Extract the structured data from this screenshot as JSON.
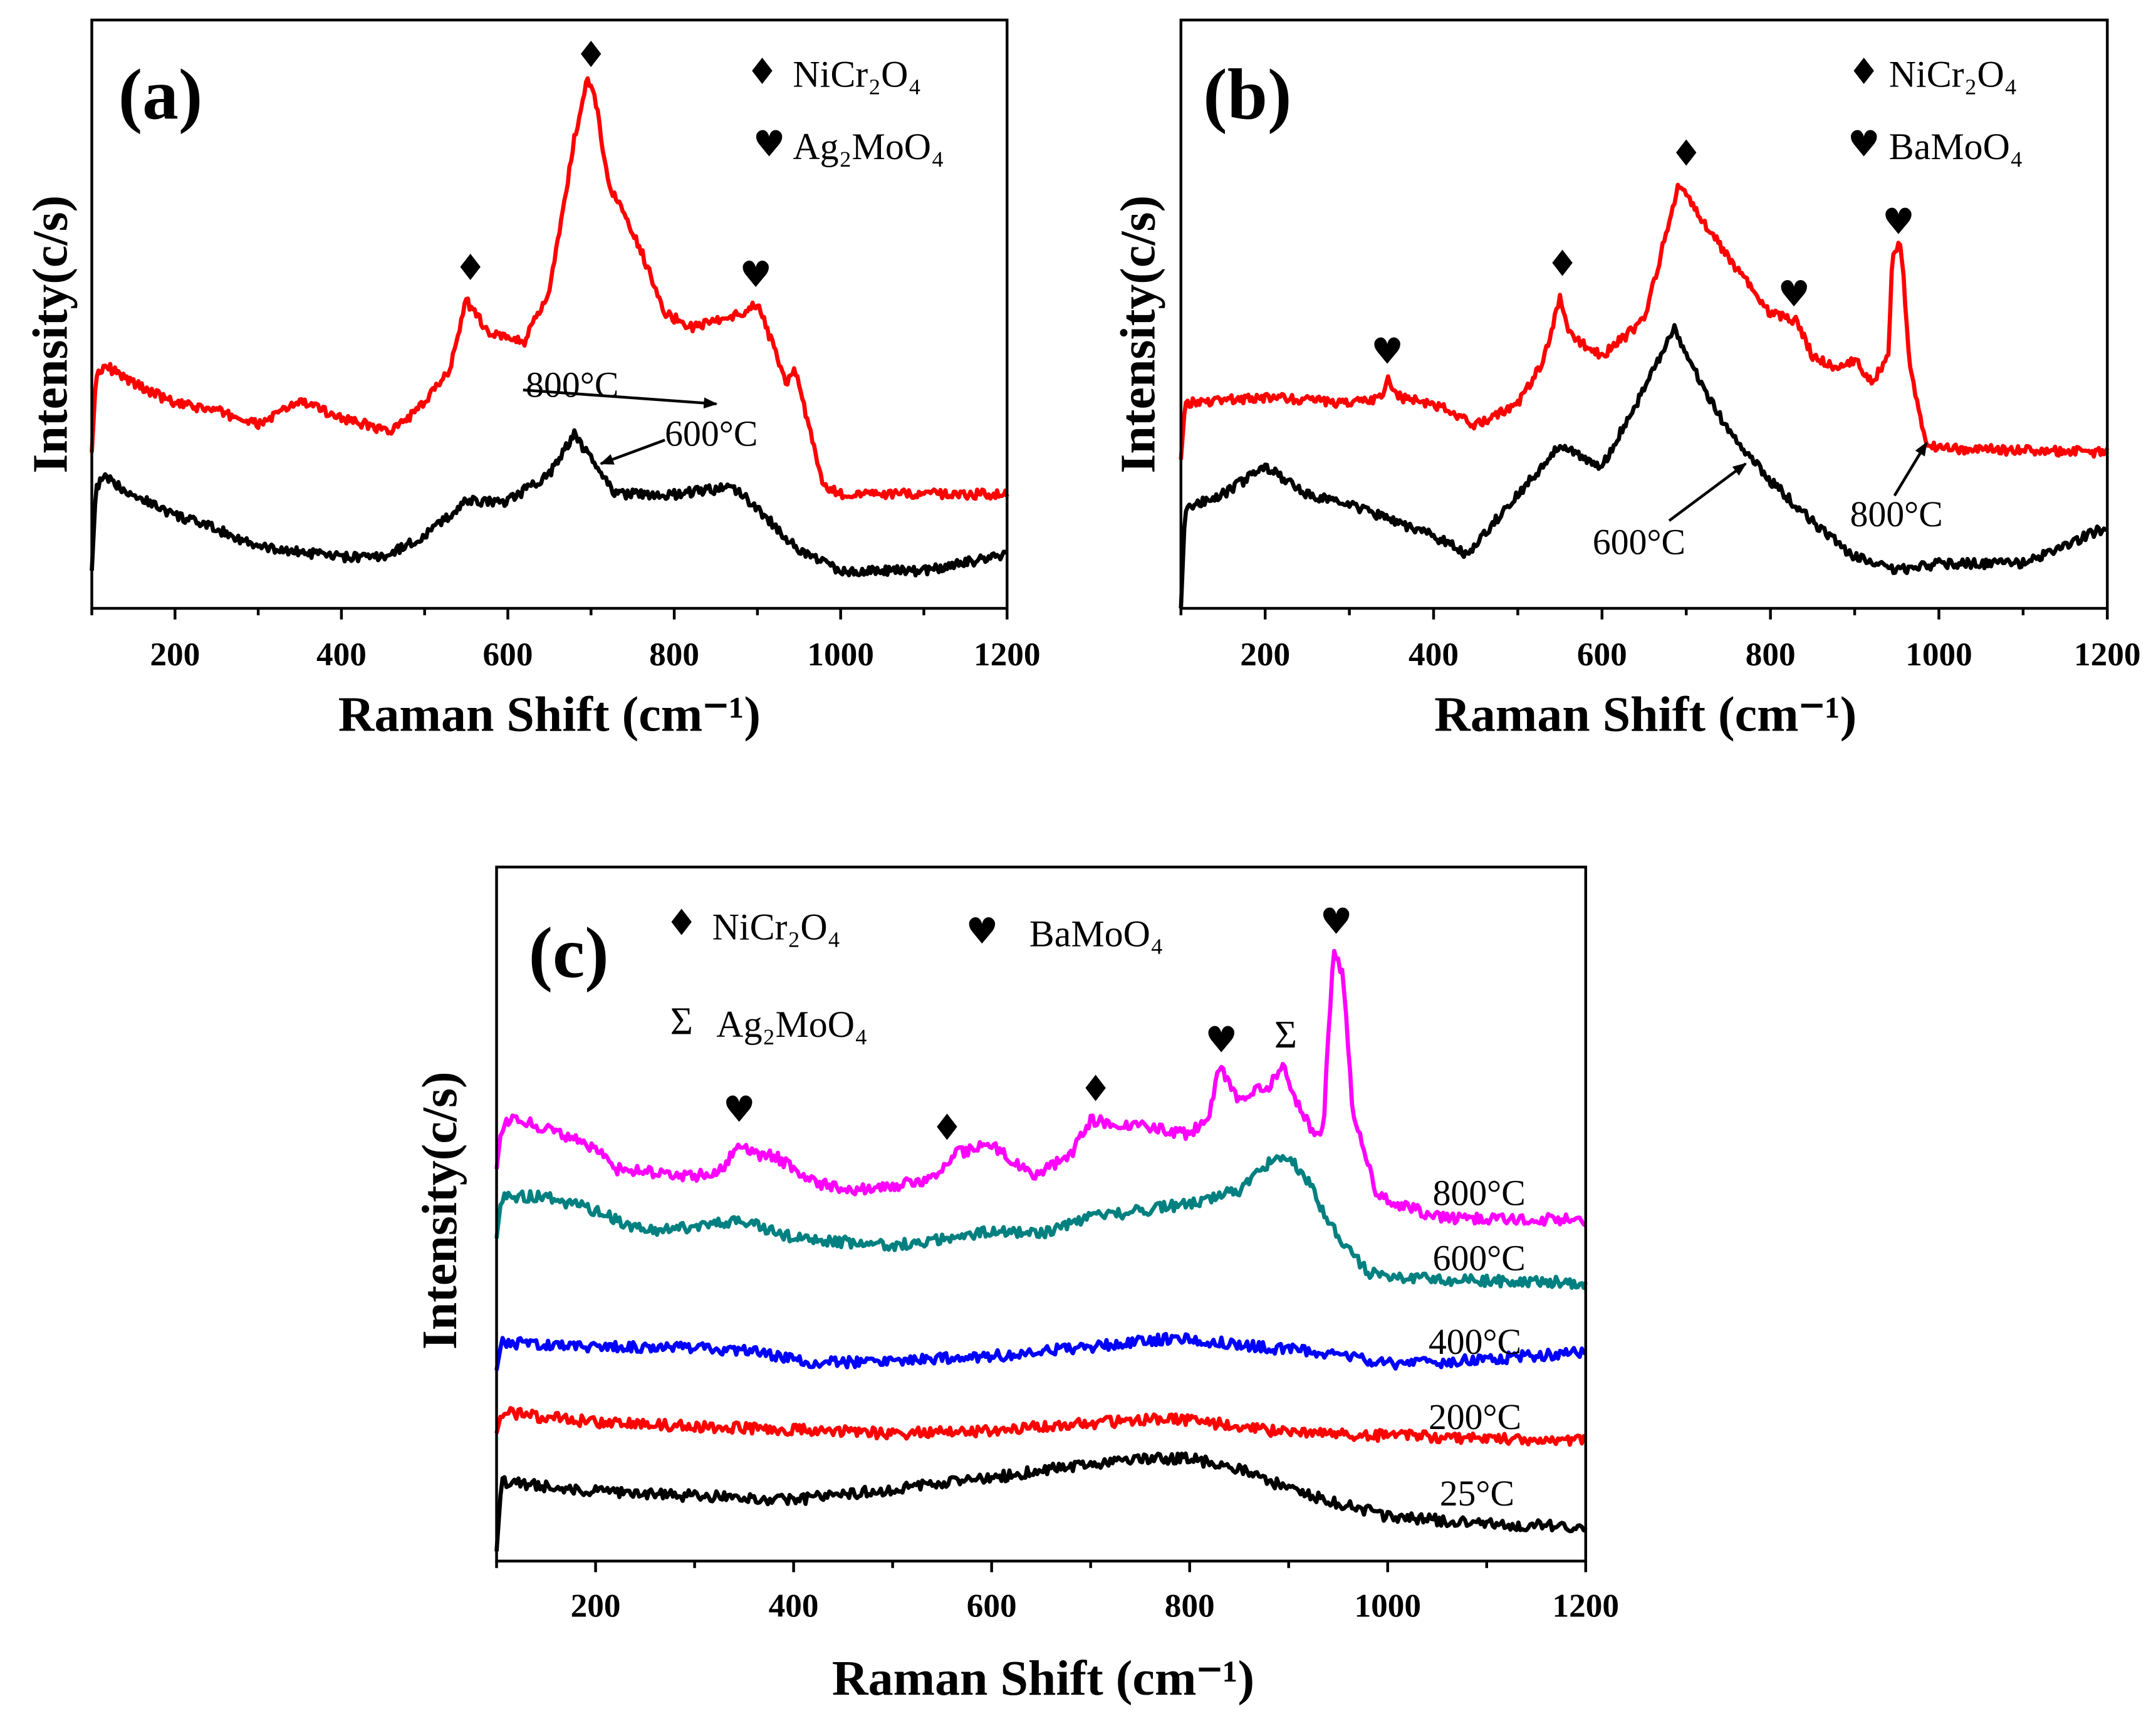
{
  "chart_data": [
    {
      "type": "line",
      "panel_label": "(a)",
      "xlabel": "Raman Shift (cm⁻¹)",
      "ylabel": "Intensity(c/s)",
      "xlim": [
        100,
        1200
      ],
      "ylim": [
        0,
        100
      ],
      "xticks": [
        "200",
        "400",
        "600",
        "800",
        "1000",
        "1200"
      ],
      "legend": [
        {
          "symbol": "diamond",
          "label": "NiCr₂O₄"
        },
        {
          "symbol": "heart",
          "label": "Ag₂MoO₄"
        }
      ],
      "series": [
        {
          "name": "800°C",
          "color": "#ff0000",
          "x": [
            100,
            105,
            115,
            150,
            200,
            250,
            300,
            350,
            400,
            460,
            500,
            530,
            550,
            560,
            580,
            620,
            650,
            680,
            695,
            705,
            720,
            760,
            790,
            820,
            880,
            900,
            920,
            935,
            945,
            955,
            980,
            1000,
            1200
          ],
          "y": [
            26.5,
            39.5,
            41.4,
            38.3,
            34.8,
            33.6,
            31.2,
            35.2,
            32.4,
            30.0,
            34.8,
            40.7,
            52.5,
            50.1,
            46.6,
            45.4,
            53.7,
            79.7,
            89.6,
            86.8,
            72.6,
            60.8,
            50.1,
            47.8,
            50.1,
            51.8,
            44.2,
            38.3,
            40.7,
            34.8,
            20.6,
            19.4,
            19.4
          ]
        },
        {
          "name": "600°C",
          "color": "#000000",
          "x": [
            100,
            105,
            115,
            150,
            200,
            250,
            300,
            400,
            450,
            500,
            550,
            600,
            650,
            680,
            700,
            730,
            800,
            870,
            900,
            950,
            1000,
            1100,
            1200
          ],
          "y": [
            6.4,
            20.6,
            22.2,
            19.4,
            15.8,
            13.5,
            10.4,
            8.7,
            8.7,
            12.3,
            18.2,
            18.2,
            22.9,
            29.6,
            25.3,
            19.4,
            19.4,
            20.6,
            17.0,
            9.9,
            6.4,
            6.4,
            9.2
          ]
        }
      ],
      "markers": [
        {
          "symbol": "diamond",
          "x": 555,
          "y": 57.7
        },
        {
          "symbol": "diamond",
          "x": 700,
          "y": 93.9
        },
        {
          "symbol": "heart",
          "x": 898,
          "y": 56.5
        }
      ],
      "annotations": [
        {
          "text": "800°C",
          "series": "800°C"
        },
        {
          "text": "600°C",
          "series": "600°C"
        }
      ]
    },
    {
      "type": "line",
      "panel_label": "(b)",
      "xlabel": "Raman Shift (cm⁻¹)",
      "ylabel": "Intensity(c/s)",
      "xlim": [
        100,
        1200
      ],
      "ylim": [
        0,
        100
      ],
      "xticks": [
        "200",
        "400",
        "600",
        "800",
        "1000",
        "1200"
      ],
      "legend": [
        {
          "symbol": "diamond",
          "label": "NiCr₂O₄"
        },
        {
          "symbol": "heart",
          "label": "BaMoO₄"
        }
      ],
      "series": [
        {
          "name": "800°C",
          "color": "#ff0000",
          "x": [
            100,
            105,
            200,
            300,
            340,
            345,
            360,
            400,
            450,
            500,
            530,
            550,
            560,
            600,
            650,
            690,
            700,
            750,
            800,
            830,
            850,
            880,
            900,
            920,
            940,
            945,
            955,
            965,
            985,
            1000,
            1200
          ],
          "y": [
            25.3,
            34.8,
            35.9,
            34.8,
            35.9,
            39.0,
            35.9,
            34.8,
            31.2,
            34.8,
            41.8,
            52.5,
            46.6,
            43.0,
            48.9,
            71.4,
            70.2,
            59.6,
            50.1,
            48.9,
            43.0,
            40.7,
            42.3,
            38.3,
            43.0,
            60.8,
            61.9,
            41.8,
            27.7,
            27.2,
            26.5
          ]
        },
        {
          "name": "600°C",
          "color": "#000000",
          "x": [
            100,
            105,
            150,
            200,
            250,
            300,
            400,
            440,
            500,
            550,
            600,
            650,
            685,
            700,
            750,
            800,
            850,
            900,
            950,
            1000,
            1100,
            1200
          ],
          "y": [
            0,
            17.0,
            19.4,
            24.1,
            19.4,
            17.7,
            12.3,
            9.2,
            19.4,
            27.7,
            24.1,
            37.1,
            47.8,
            43.0,
            30.0,
            21.7,
            14.7,
            8.7,
            6.4,
            7.6,
            7.6,
            13.9
          ]
        }
      ],
      "markers": [
        {
          "symbol": "heart",
          "x": 345,
          "y": 43.5
        },
        {
          "symbol": "diamond",
          "x": 553,
          "y": 58.4
        },
        {
          "symbol": "diamond",
          "x": 700,
          "y": 77.1
        },
        {
          "symbol": "heart",
          "x": 828,
          "y": 53.2
        },
        {
          "symbol": "heart",
          "x": 952,
          "y": 65.5
        }
      ],
      "annotations": [
        {
          "text": "600°C",
          "series": "600°C"
        },
        {
          "text": "800°C",
          "series": "800°C"
        }
      ]
    },
    {
      "type": "line",
      "panel_label": "(c)",
      "xlabel": "Raman Shift (cm⁻¹)",
      "ylabel": "Intensity(c/s)",
      "xlim": [
        100,
        1200
      ],
      "ylim": [
        0,
        100
      ],
      "xticks": [
        "200",
        "400",
        "600",
        "800",
        "1000",
        "1200"
      ],
      "legend": [
        {
          "symbol": "diamond",
          "label": "NiCr₂O₄"
        },
        {
          "symbol": "heart",
          "label": "BaMoO₄"
        },
        {
          "symbol": "sigma",
          "label": "Ag₂MoO₄"
        }
      ],
      "series": [
        {
          "name": "800°C",
          "color": "#ff00ff",
          "x": [
            100,
            105,
            120,
            200,
            220,
            300,
            330,
            345,
            360,
            380,
            420,
            460,
            500,
            540,
            560,
            600,
            640,
            680,
            700,
            760,
            800,
            820,
            830,
            850,
            880,
            895,
            910,
            925,
            935,
            945,
            955,
            965,
            990,
            1050,
            1200
          ],
          "y": [
            56.5,
            62.5,
            63.9,
            59.5,
            56.5,
            55.5,
            56.5,
            60.5,
            58.5,
            58.5,
            54.5,
            53.5,
            54.1,
            54.9,
            58.5,
            60.1,
            55.5,
            58.5,
            63.5,
            62.5,
            61.5,
            64.5,
            71.5,
            66.5,
            68.5,
            71.5,
            65.5,
            61.5,
            62.5,
            87.6,
            84.6,
            64.5,
            52.5,
            49.5,
            49.1
          ]
        },
        {
          "name": "600°C",
          "color": "#008080",
          "x": [
            100,
            105,
            150,
            200,
            250,
            350,
            400,
            500,
            600,
            650,
            700,
            800,
            850,
            880,
            900,
            920,
            950,
            980,
            1050,
            1200
          ],
          "y": [
            46.5,
            52.5,
            52.5,
            50.5,
            47.5,
            48.9,
            46.5,
            45.5,
            47.5,
            47.1,
            49.5,
            51.5,
            53.5,
            57.5,
            58.5,
            54.5,
            46.5,
            41.5,
            40.5,
            40.1
          ]
        },
        {
          "name": "400°C",
          "color": "#0000ff",
          "x": [
            100,
            105,
            200,
            350,
            420,
            600,
            700,
            780,
            900,
            1000,
            1040,
            1200
          ],
          "y": [
            27.5,
            31.5,
            30.9,
            30.5,
            28.5,
            29.5,
            30.9,
            32.1,
            30.5,
            28.5,
            28.5,
            30.1
          ]
        },
        {
          "name": "200°C",
          "color": "#ff0000",
          "x": [
            100,
            105,
            200,
            500,
            600,
            750,
            800,
            900,
            1200
          ],
          "y": [
            18.4,
            21.4,
            20.0,
            18.4,
            18.8,
            20.4,
            20.4,
            18.4,
            17.4
          ]
        },
        {
          "name": "25°C",
          "color": "#000000",
          "x": [
            100,
            105,
            200,
            400,
            500,
            600,
            700,
            750,
            800,
            850,
            900,
            950,
            1000,
            1100,
            1200
          ],
          "y": [
            1.4,
            11.4,
            10.0,
            8.8,
            10.4,
            12.0,
            14.0,
            14.8,
            14.8,
            13.4,
            10.4,
            8.4,
            6.4,
            5.4,
            4.8
          ]
        }
      ],
      "markers": [
        {
          "symbol": "heart",
          "x": 345,
          "y": 64.9
        },
        {
          "symbol": "diamond",
          "x": 555,
          "y": 62.3
        },
        {
          "symbol": "diamond",
          "x": 705,
          "y": 67.9
        },
        {
          "symbol": "heart",
          "x": 832,
          "y": 74.9
        },
        {
          "symbol": "sigma",
          "x": 897,
          "y": 75.6
        },
        {
          "symbol": "heart",
          "x": 948,
          "y": 92.0
        }
      ],
      "annotations": [
        {
          "text": "800°C",
          "series": "800°C"
        },
        {
          "text": "600°C",
          "series": "600°C"
        },
        {
          "text": "400°C",
          "series": "400°C"
        },
        {
          "text": "200°C",
          "series": "200°C"
        },
        {
          "text": "25°C",
          "series": "25°C"
        }
      ]
    }
  ]
}
